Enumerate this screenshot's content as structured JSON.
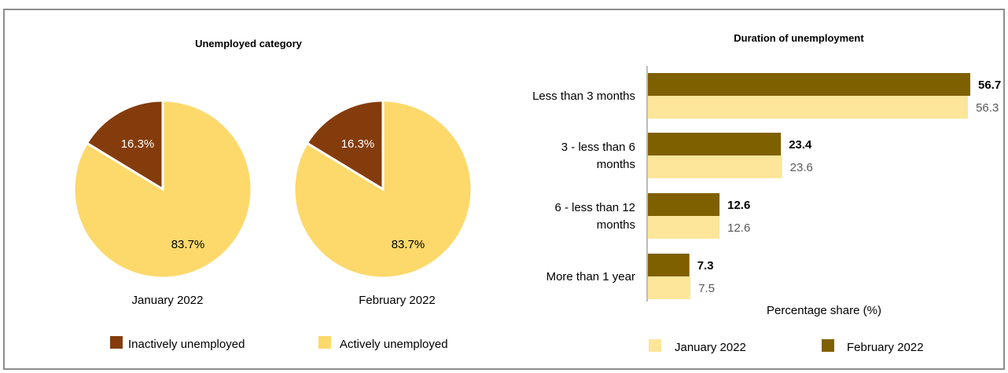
{
  "pie_panel": {
    "title": "Unemployed category",
    "legend": [
      {
        "label": "Inactively unemployed",
        "color": "#843c0c"
      },
      {
        "label": "Actively unemployed",
        "color": "#fdd96b"
      }
    ]
  },
  "bar_panel": {
    "title": "Duration of unemployment",
    "xlabel": "Percentage share (%)",
    "legend": [
      {
        "label": "January 2022",
        "color": "#fde59a"
      },
      {
        "label": "February 2022",
        "color": "#7f6000"
      }
    ]
  },
  "chart_data": [
    {
      "type": "pie",
      "label": "January 2022",
      "slices": [
        {
          "name": "Inactively unemployed",
          "value": 16.3,
          "label": "16.3%",
          "color": "#843c0c"
        },
        {
          "name": "Actively unemployed",
          "value": 83.7,
          "label": "83.7%",
          "color": "#fdd96b"
        }
      ]
    },
    {
      "type": "pie",
      "label": "February 2022",
      "slices": [
        {
          "name": "Inactively unemployed",
          "value": 16.3,
          "label": "16.3%",
          "color": "#843c0c"
        },
        {
          "name": "Actively unemployed",
          "value": 83.7,
          "label": "83.7%",
          "color": "#fdd96b"
        }
      ]
    },
    {
      "type": "bar",
      "orientation": "horizontal",
      "title": "Duration of unemployment",
      "xlabel": "Percentage share (%)",
      "categories": [
        [
          "Less than 3 months"
        ],
        [
          "3 - less than 6",
          "months"
        ],
        [
          "6 - less than 12",
          "months"
        ],
        [
          "More than 1 year"
        ]
      ],
      "xlim": [
        0,
        60
      ],
      "series": [
        {
          "name": "February 2022",
          "color": "#7f6000",
          "values": [
            56.7,
            23.4,
            12.6,
            7.3
          ],
          "labels": [
            "56.7",
            "23.4",
            "12.6",
            "7.3"
          ]
        },
        {
          "name": "January 2022",
          "color": "#fde59a",
          "values": [
            56.3,
            23.6,
            12.6,
            7.5
          ],
          "labels": [
            "56.3",
            "23.6",
            "12.6",
            "7.5"
          ]
        }
      ]
    }
  ]
}
